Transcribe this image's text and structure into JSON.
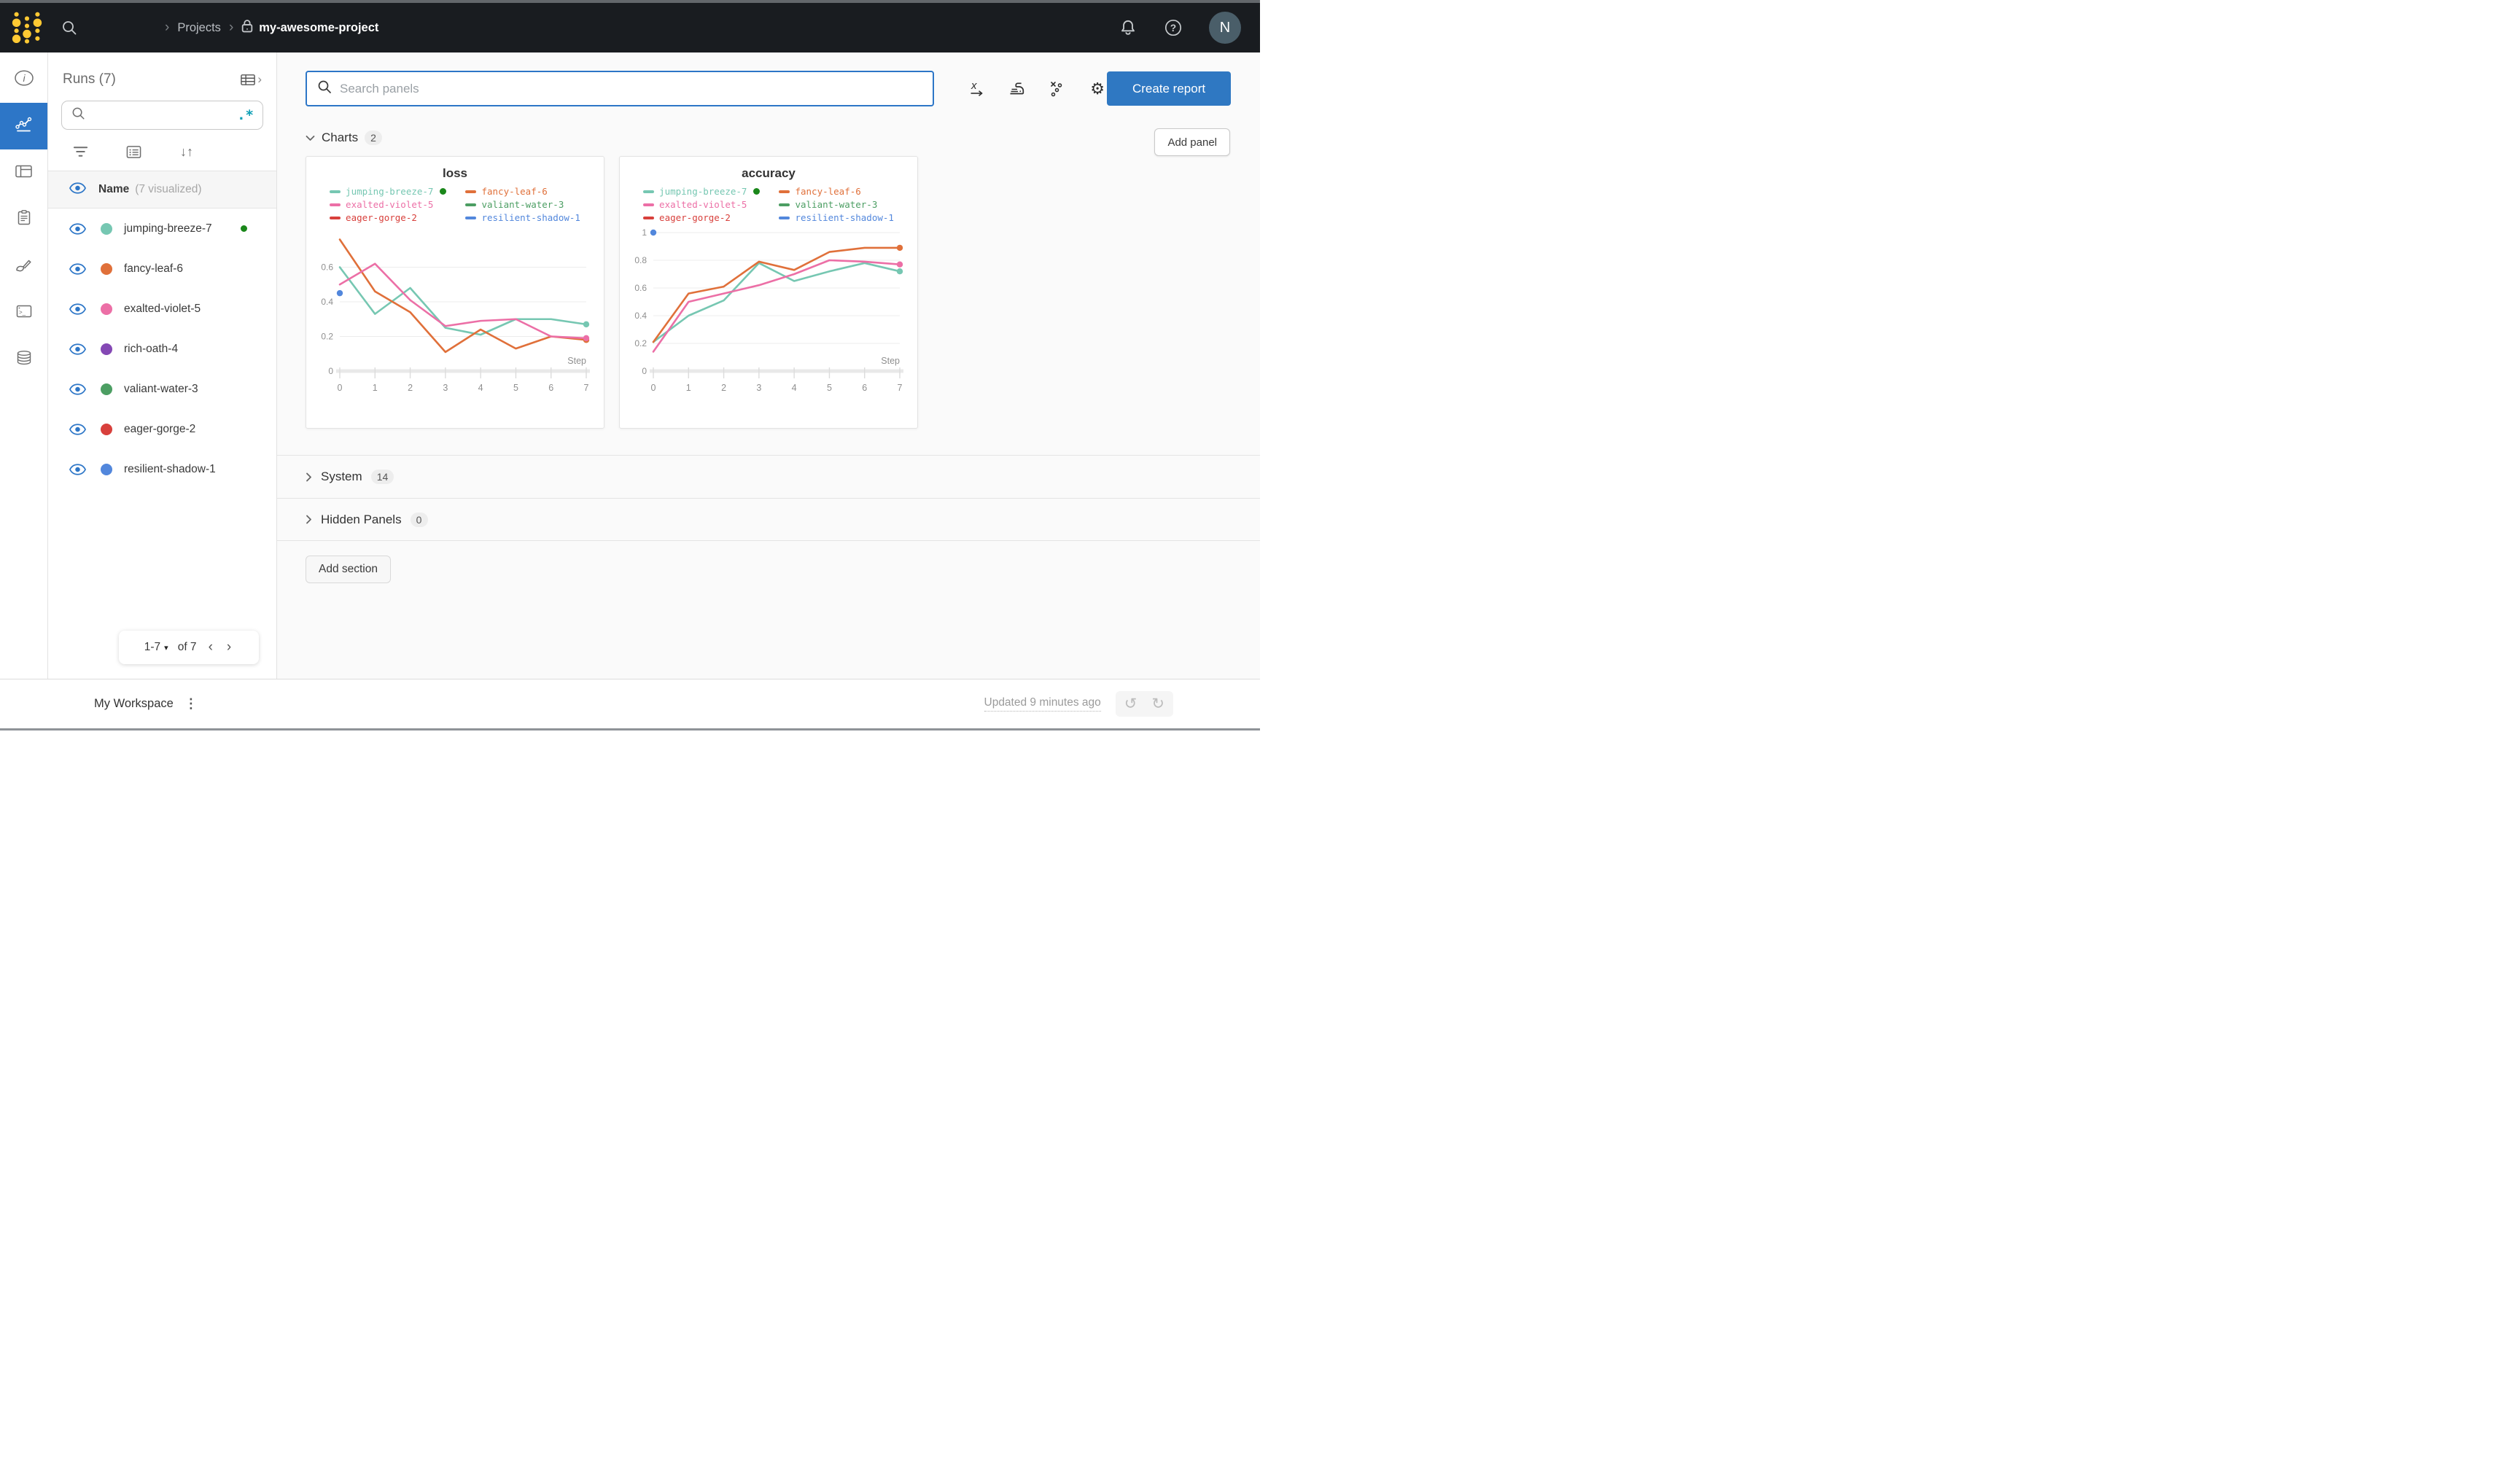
{
  "topbar": {
    "projects_label": "Projects",
    "project_name": "my-awesome-project",
    "avatar_letter": "N"
  },
  "icons": {
    "crumb_sep": "›",
    "regex": ".*",
    "sort": "↓↑",
    "gear": "⚙",
    "undo": "↺",
    "redo": "↻",
    "kebab": "⋮",
    "dropdown": "▾",
    "prev": "‹",
    "next": "›",
    "expand": "›",
    "help": "?"
  },
  "colors": {
    "accent": "#2D76C7",
    "running_green": "#1A871A",
    "navbar_bg": "#191C20",
    "avatar_bg": "#4A5E69",
    "logo_yellow": "#FFC933",
    "create_report_blue": "#2F78C2"
  },
  "sidebar": {
    "title": "Runs (7)",
    "search_placeholder": "",
    "header_name": "Name",
    "header_visualized": "(7 visualized)",
    "runs": [
      {
        "name": "jumping-breeze-7",
        "color": "#76C7B2",
        "running": true
      },
      {
        "name": "fancy-leaf-6",
        "color": "#E0703A",
        "running": false
      },
      {
        "name": "exalted-violet-5",
        "color": "#EC6FA6",
        "running": false
      },
      {
        "name": "rich-oath-4",
        "color": "#8448B4",
        "running": false
      },
      {
        "name": "valiant-water-3",
        "color": "#4C9E63",
        "running": false
      },
      {
        "name": "eager-gorge-2",
        "color": "#D8403C",
        "running": false
      },
      {
        "name": "resilient-shadow-1",
        "color": "#5287DC",
        "running": false
      }
    ],
    "pagination": {
      "range": "1-7",
      "of": "of 7"
    }
  },
  "main": {
    "search_placeholder": "Search panels",
    "create_report": "Create report",
    "add_panel": "Add panel",
    "add_section": "Add section",
    "sections": {
      "charts": {
        "label": "Charts",
        "count": "2"
      },
      "system": {
        "label": "System",
        "count": "14"
      },
      "hidden": {
        "label": "Hidden Panels",
        "count": "0"
      }
    }
  },
  "footer": {
    "workspace": "My Workspace",
    "updated": "Updated 9 minutes ago"
  },
  "chart_data": [
    {
      "type": "line",
      "title": "loss",
      "xlabel": "Step",
      "x": [
        0,
        1,
        2,
        3,
        4,
        5,
        6,
        7
      ],
      "ylim": [
        0,
        0.8
      ],
      "yticks": [
        0,
        0.2,
        0.4,
        0.6
      ],
      "grid": true,
      "legend_position": "top",
      "series": [
        {
          "name": "jumping-breeze-7",
          "color": "#76C7B2",
          "running": true,
          "end_dot": true,
          "values": [
            0.6,
            0.33,
            0.48,
            0.25,
            0.21,
            0.3,
            0.3,
            0.27
          ]
        },
        {
          "name": "fancy-leaf-6",
          "color": "#E0703A",
          "end_dot": true,
          "values": [
            0.76,
            0.46,
            0.34,
            0.11,
            0.24,
            0.13,
            0.2,
            0.18
          ]
        },
        {
          "name": "exalted-violet-5",
          "color": "#EC6FA6",
          "end_dot": true,
          "values": [
            0.5,
            0.62,
            0.41,
            0.26,
            0.29,
            0.3,
            0.2,
            0.19
          ]
        },
        {
          "name": "valiant-water-3",
          "color": "#4C9E63",
          "values": []
        },
        {
          "name": "eager-gorge-2",
          "color": "#D8403C",
          "values": []
        },
        {
          "name": "resilient-shadow-1",
          "color": "#5287DC",
          "point": [
            0,
            0.45
          ]
        }
      ]
    },
    {
      "type": "line",
      "title": "accuracy",
      "xlabel": "Step",
      "x": [
        0,
        1,
        2,
        3,
        4,
        5,
        6,
        7
      ],
      "ylim": [
        0,
        1.0
      ],
      "yticks": [
        0,
        0.2,
        0.4,
        0.6,
        0.8,
        1
      ],
      "grid": true,
      "legend_position": "top",
      "series": [
        {
          "name": "jumping-breeze-7",
          "color": "#76C7B2",
          "running": true,
          "end_dot": true,
          "values": [
            0.21,
            0.4,
            0.51,
            0.78,
            0.65,
            0.72,
            0.78,
            0.72
          ]
        },
        {
          "name": "fancy-leaf-6",
          "color": "#E0703A",
          "end_dot": true,
          "values": [
            0.21,
            0.56,
            0.61,
            0.79,
            0.73,
            0.86,
            0.89,
            0.89
          ]
        },
        {
          "name": "exalted-violet-5",
          "color": "#EC6FA6",
          "end_dot": true,
          "values": [
            0.14,
            0.5,
            0.56,
            0.62,
            0.7,
            0.8,
            0.79,
            0.77
          ]
        },
        {
          "name": "valiant-water-3",
          "color": "#4C9E63",
          "values": []
        },
        {
          "name": "eager-gorge-2",
          "color": "#D8403C",
          "values": []
        },
        {
          "name": "resilient-shadow-1",
          "color": "#5287DC",
          "point": [
            0,
            1.0
          ]
        }
      ]
    }
  ]
}
